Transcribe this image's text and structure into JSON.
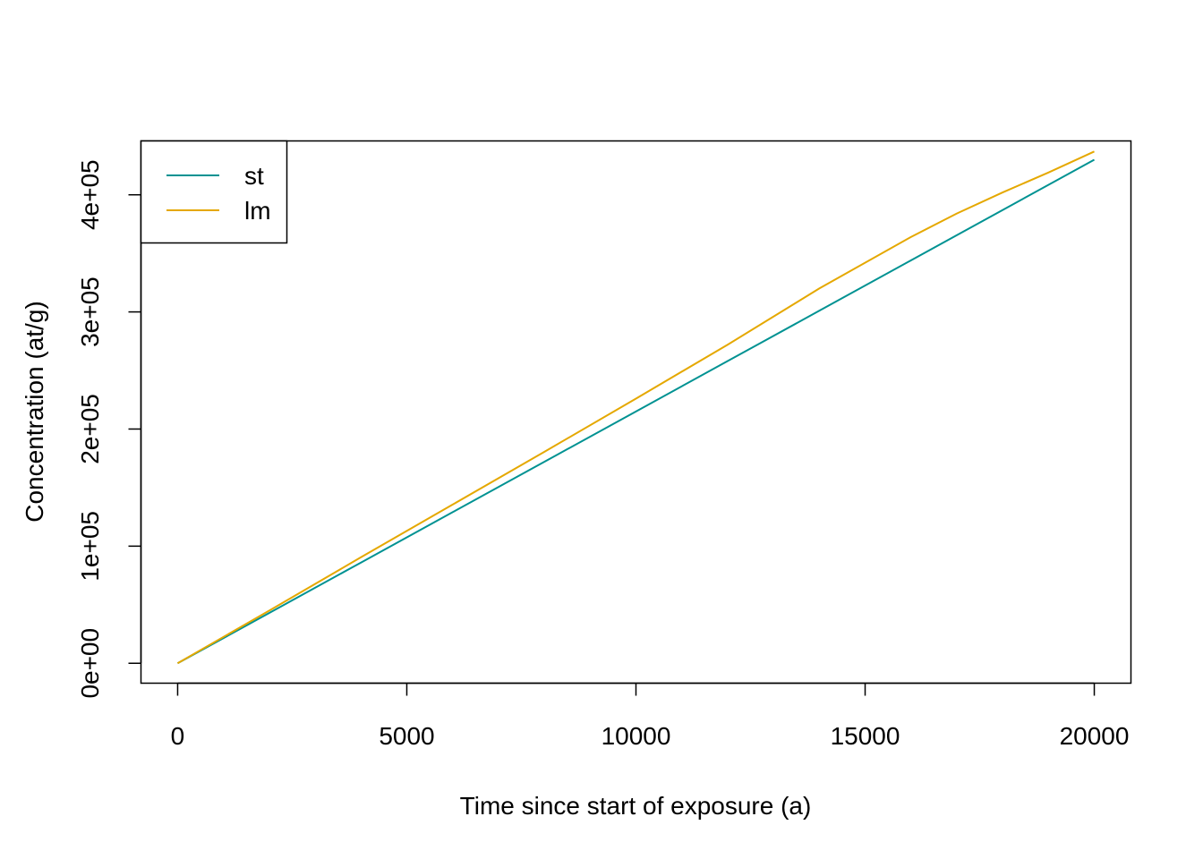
{
  "chart_data": {
    "type": "line",
    "title": "",
    "xlabel": "Time since start of exposure (a)",
    "ylabel": "Concentration (at/g)",
    "xlim": [
      -800,
      20800
    ],
    "ylim": [
      -17000,
      446000
    ],
    "x_ticks": [
      0,
      5000,
      10000,
      15000,
      20000
    ],
    "x_tick_labels": [
      "0",
      "5000",
      "10000",
      "15000",
      "20000"
    ],
    "y_ticks": [
      0,
      100000,
      200000,
      300000,
      400000
    ],
    "y_tick_labels": [
      "0e+00",
      "1e+05",
      "2e+05",
      "3e+05",
      "4e+05"
    ],
    "grid": false,
    "legend_position": "top-left",
    "series": [
      {
        "name": "st",
        "color": "#009292",
        "x": [
          0,
          2000,
          4000,
          6000,
          8000,
          10000,
          12000,
          14000,
          16000,
          18000,
          20000
        ],
        "y": [
          0,
          43000,
          86000,
          129000,
          172000,
          215000,
          258000,
          301000,
          344000,
          387000,
          430000
        ]
      },
      {
        "name": "lm",
        "color": "#E5A800",
        "x": [
          0,
          2000,
          4000,
          6000,
          8000,
          10000,
          12000,
          14000,
          16000,
          17000,
          18000,
          19000,
          20000
        ],
        "y": [
          0,
          45000,
          90500,
          135500,
          180500,
          226000,
          272000,
          320000,
          364000,
          384000,
          402000,
          419000,
          437000
        ]
      }
    ]
  }
}
